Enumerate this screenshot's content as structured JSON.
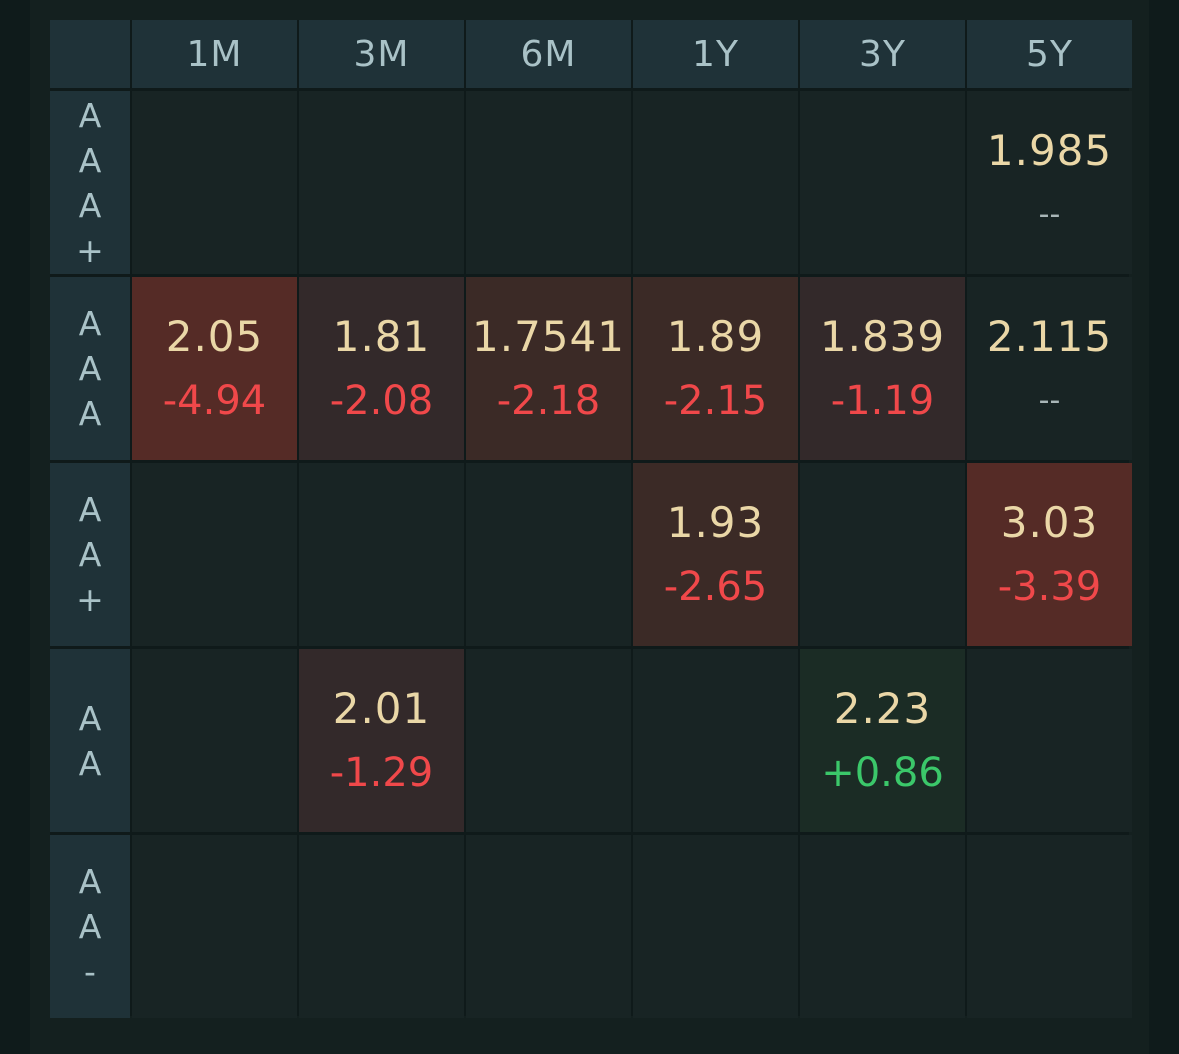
{
  "columns": [
    "1M",
    "3M",
    "6M",
    "1Y",
    "3Y",
    "5Y"
  ],
  "rows": [
    {
      "label": "A\nA\nA\n+",
      "cells": [
        null,
        null,
        null,
        null,
        null,
        {
          "price": "1.985",
          "change": "--",
          "dir": "flat"
        }
      ]
    },
    {
      "label": "A\nA\nA",
      "cells": [
        {
          "price": "2.05",
          "change": "-4.94",
          "dir": "down",
          "heat": "neg-strong"
        },
        {
          "price": "1.81",
          "change": "-2.08",
          "dir": "down",
          "heat": "neg-light"
        },
        {
          "price": "1.7541",
          "change": "-2.18",
          "dir": "down",
          "heat": "neg-mid"
        },
        {
          "price": "1.89",
          "change": "-2.15",
          "dir": "down",
          "heat": "neg-mid"
        },
        {
          "price": "1.839",
          "change": "-1.19",
          "dir": "down",
          "heat": "neg-light"
        },
        {
          "price": "2.115",
          "change": "--",
          "dir": "flat"
        }
      ]
    },
    {
      "label": "A\nA\n+",
      "cells": [
        null,
        null,
        null,
        {
          "price": "1.93",
          "change": "-2.65",
          "dir": "down",
          "heat": "neg-mid"
        },
        null,
        {
          "price": "3.03",
          "change": "-3.39",
          "dir": "down",
          "heat": "neg-strong"
        }
      ]
    },
    {
      "label": "A\nA",
      "cells": [
        null,
        {
          "price": "2.01",
          "change": "-1.29",
          "dir": "down",
          "heat": "neg-light"
        },
        null,
        null,
        {
          "price": "2.23",
          "change": "+0.86",
          "dir": "up",
          "heat": "pos"
        },
        null
      ]
    },
    {
      "label": "A\nA\n-",
      "cells": [
        null,
        null,
        null,
        null,
        null,
        null
      ]
    }
  ],
  "colors": {
    "background": "#0f1b1b",
    "header": "#1f3238",
    "cell": "#182424",
    "price": "#ead7a7",
    "down": "#f0484a",
    "up": "#3bc86a",
    "heat_strong": "#552b26",
    "heat_mid": "#3b2a26",
    "heat_light": "#33292a",
    "heat_pos": "#1b2c25"
  }
}
